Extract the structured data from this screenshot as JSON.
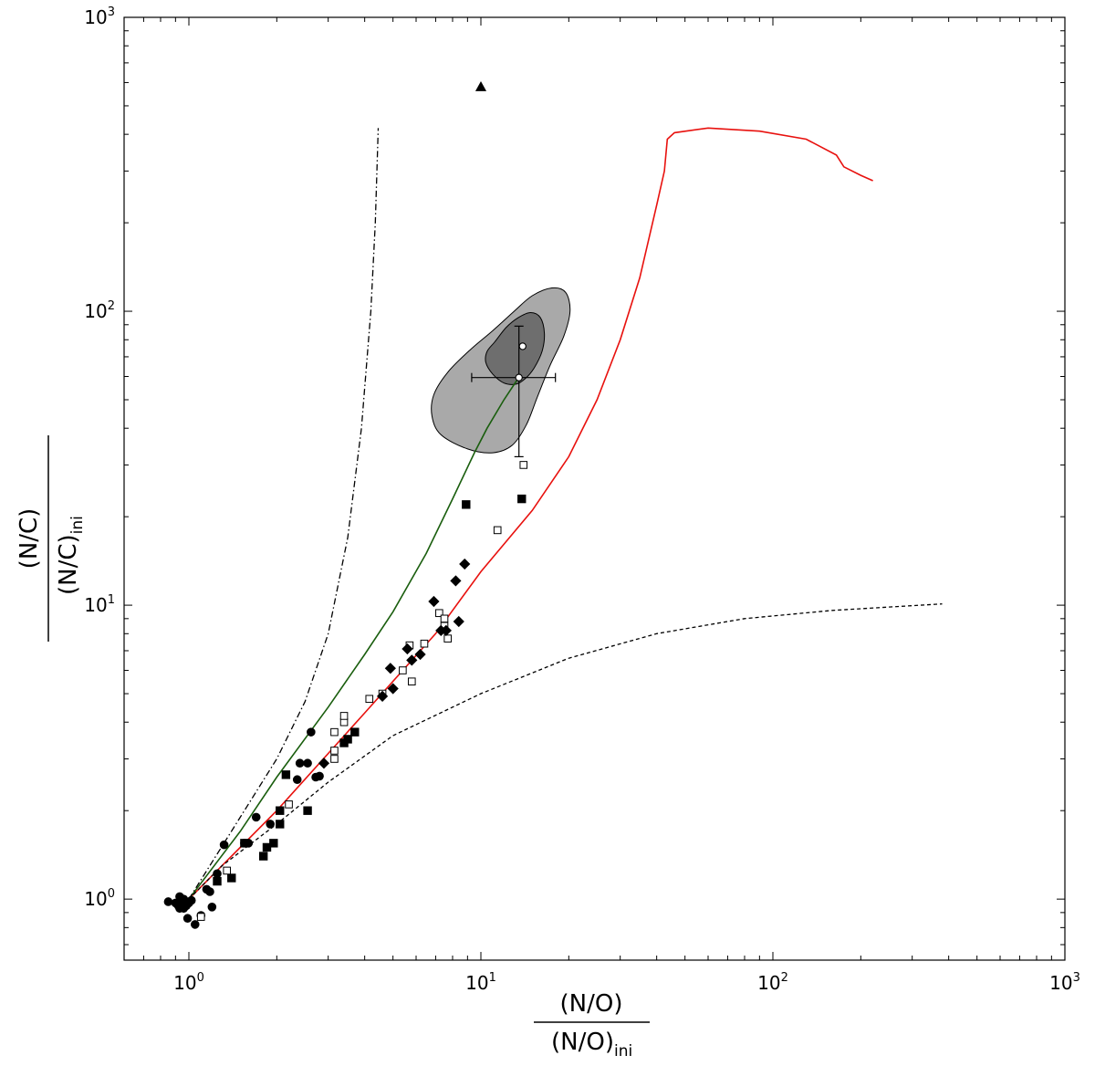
{
  "chart_data": {
    "type": "scatter",
    "scale": {
      "x": "log",
      "y": "log"
    },
    "xlim": [
      0.6,
      1000
    ],
    "ylim": [
      0.62,
      1000
    ],
    "x_ticks": [
      {
        "value": 1,
        "base": "10",
        "exp": "0"
      },
      {
        "value": 10,
        "base": "10",
        "exp": "1"
      },
      {
        "value": 100,
        "base": "10",
        "exp": "2"
      },
      {
        "value": 1000,
        "base": "10",
        "exp": "3"
      }
    ],
    "y_ticks": [
      {
        "value": 1,
        "base": "10",
        "exp": "0"
      },
      {
        "value": 10,
        "base": "10",
        "exp": "1"
      },
      {
        "value": 100,
        "base": "10",
        "exp": "2"
      },
      {
        "value": 1000,
        "base": "10",
        "exp": "3"
      }
    ],
    "xlabel": {
      "numerator": "(N/O)",
      "denominator": "(N/O)",
      "denominator_sub": "ini"
    },
    "ylabel": {
      "numerator": "(N/C)",
      "denominator": "(N/C)",
      "denominator_sub": "ini"
    },
    "series": [
      {
        "name": "filled circles",
        "marker": "circle",
        "filled": true,
        "points": [
          [
            0.85,
            0.98
          ],
          [
            0.9,
            0.97
          ],
          [
            0.92,
            0.95
          ],
          [
            0.93,
            1.02
          ],
          [
            0.94,
            0.99
          ],
          [
            0.96,
            0.93
          ],
          [
            0.98,
            0.95
          ],
          [
            1.0,
            0.97
          ],
          [
            1.02,
            0.99
          ],
          [
            0.99,
            0.86
          ],
          [
            1.05,
            0.82
          ],
          [
            1.1,
            0.88
          ],
          [
            1.15,
            1.08
          ],
          [
            1.2,
            0.94
          ],
          [
            1.18,
            1.06
          ],
          [
            1.25,
            1.22
          ],
          [
            1.32,
            1.53
          ],
          [
            1.55,
            1.55
          ],
          [
            1.6,
            1.55
          ],
          [
            1.7,
            1.9
          ],
          [
            1.9,
            1.8
          ],
          [
            2.35,
            2.55
          ],
          [
            2.4,
            2.9
          ],
          [
            2.55,
            2.9
          ],
          [
            2.62,
            3.7
          ],
          [
            2.72,
            2.6
          ],
          [
            2.8,
            2.62
          ],
          [
            0.93,
            0.93
          ],
          [
            0.96,
            1.0
          ]
        ]
      },
      {
        "name": "filled squares",
        "marker": "square",
        "filled": true,
        "points": [
          [
            1.25,
            1.15
          ],
          [
            1.4,
            1.18
          ],
          [
            1.55,
            1.55
          ],
          [
            1.8,
            1.4
          ],
          [
            1.85,
            1.5
          ],
          [
            1.95,
            1.55
          ],
          [
            2.05,
            1.8
          ],
          [
            2.05,
            2.0
          ],
          [
            2.15,
            2.65
          ],
          [
            2.55,
            2.0
          ],
          [
            3.4,
            3.4
          ],
          [
            3.5,
            3.5
          ],
          [
            3.7,
            3.7
          ],
          [
            8.9,
            22
          ],
          [
            13.8,
            23
          ]
        ]
      },
      {
        "name": "open squares",
        "marker": "square",
        "filled": false,
        "points": [
          [
            1.1,
            0.87
          ],
          [
            1.35,
            1.25
          ],
          [
            2.2,
            2.1
          ],
          [
            3.15,
            3.0
          ],
          [
            3.15,
            3.2
          ],
          [
            3.15,
            3.7
          ],
          [
            3.4,
            4.0
          ],
          [
            3.4,
            4.2
          ],
          [
            4.15,
            4.8
          ],
          [
            4.6,
            5.0
          ],
          [
            5.4,
            6.0
          ],
          [
            5.7,
            7.3
          ],
          [
            5.8,
            5.5
          ],
          [
            6.4,
            7.4
          ],
          [
            7.2,
            9.4
          ],
          [
            7.5,
            8.5
          ],
          [
            7.5,
            9.0
          ],
          [
            7.7,
            7.7
          ],
          [
            11.4,
            18
          ],
          [
            14,
            30
          ]
        ]
      },
      {
        "name": "filled diamonds",
        "marker": "diamond",
        "filled": true,
        "points": [
          [
            2.9,
            2.9
          ],
          [
            4.6,
            4.9
          ],
          [
            4.9,
            6.1
          ],
          [
            5.0,
            5.2
          ],
          [
            5.6,
            7.1
          ],
          [
            5.8,
            6.5
          ],
          [
            6.2,
            6.8
          ],
          [
            6.9,
            10.3
          ],
          [
            7.3,
            8.2
          ],
          [
            7.6,
            8.2
          ],
          [
            8.2,
            12.1
          ],
          [
            8.4,
            8.8
          ],
          [
            8.8,
            13.8
          ]
        ]
      },
      {
        "name": "filled triangle",
        "marker": "triangle",
        "filled": true,
        "points": [
          [
            10.0,
            580
          ]
        ]
      }
    ],
    "lines": [
      {
        "name": "red model track",
        "color": "#e8110e",
        "style": "solid",
        "points": [
          [
            1.0,
            1.0
          ],
          [
            2.0,
            2.0
          ],
          [
            4.0,
            4.3
          ],
          [
            7.0,
            8.0
          ],
          [
            10.0,
            13.0
          ],
          [
            15.0,
            21
          ],
          [
            20.0,
            32
          ],
          [
            25.0,
            50
          ],
          [
            30.0,
            80
          ],
          [
            35.0,
            130
          ],
          [
            40.0,
            230
          ],
          [
            42.5,
            300
          ],
          [
            43.5,
            385
          ],
          [
            46.0,
            405
          ],
          [
            60.0,
            420
          ],
          [
            90.0,
            410
          ],
          [
            130.0,
            385
          ],
          [
            165.0,
            340
          ],
          [
            175.0,
            310
          ],
          [
            200.0,
            290
          ],
          [
            220.0,
            278
          ]
        ]
      },
      {
        "name": "green model track",
        "color": "#1a5e0e",
        "style": "solid",
        "points": [
          [
            1.0,
            1.0
          ],
          [
            1.5,
            1.7
          ],
          [
            2.0,
            2.6
          ],
          [
            3.0,
            4.5
          ],
          [
            4.0,
            6.8
          ],
          [
            5.0,
            9.5
          ],
          [
            6.5,
            15
          ],
          [
            8.0,
            23
          ],
          [
            9.5,
            33
          ],
          [
            10.5,
            40
          ],
          [
            12.0,
            50
          ],
          [
            13.4,
            59
          ]
        ]
      },
      {
        "name": "dash-dot curve",
        "color": "#000000",
        "style": "dashdot",
        "points": [
          [
            1.0,
            1.0
          ],
          [
            1.5,
            1.9
          ],
          [
            2.0,
            3.0
          ],
          [
            2.5,
            4.7
          ],
          [
            3.0,
            8.0
          ],
          [
            3.5,
            17
          ],
          [
            3.9,
            40
          ],
          [
            4.2,
            100
          ],
          [
            4.35,
            200
          ],
          [
            4.45,
            420
          ]
        ]
      },
      {
        "name": "dashed curve",
        "color": "#000000",
        "style": "dashed",
        "points": [
          [
            1.0,
            1.0
          ],
          [
            1.3,
            1.3
          ],
          [
            2.0,
            1.8
          ],
          [
            3.0,
            2.5
          ],
          [
            5.0,
            3.6
          ],
          [
            10.0,
            5.0
          ],
          [
            20.0,
            6.6
          ],
          [
            40.0,
            8.0
          ],
          [
            80.0,
            9.0
          ],
          [
            160.0,
            9.6
          ],
          [
            380.0,
            10.1
          ]
        ]
      }
    ],
    "contours": [
      {
        "name": "outer confidence region",
        "points": [
          [
            9.2,
            74
          ],
          [
            11,
            86
          ],
          [
            13,
            100
          ],
          [
            15,
            113
          ],
          [
            17.5,
            120
          ],
          [
            19.5,
            116
          ],
          [
            20.2,
            100
          ],
          [
            19.2,
            82
          ],
          [
            17.2,
            65
          ],
          [
            15.6,
            51
          ],
          [
            14.3,
            41
          ],
          [
            12.8,
            35
          ],
          [
            11,
            33
          ],
          [
            9,
            34
          ],
          [
            7.3,
            38
          ],
          [
            6.8,
            44
          ],
          [
            6.9,
            52
          ],
          [
            7.7,
            62
          ]
        ]
      },
      {
        "name": "inner confidence region",
        "points": [
          [
            11.2,
            79
          ],
          [
            12.2,
            88
          ],
          [
            13.4,
            95
          ],
          [
            14.8,
            99
          ],
          [
            16.0,
            95
          ],
          [
            16.5,
            84
          ],
          [
            16.2,
            73
          ],
          [
            15.2,
            64
          ],
          [
            14.2,
            59
          ],
          [
            13.2,
            56.5
          ],
          [
            12.0,
            57
          ],
          [
            11.0,
            61
          ],
          [
            10.4,
            67
          ],
          [
            10.5,
            73
          ]
        ]
      }
    ],
    "measurements": [
      {
        "name": "open circle upper",
        "x": 13.9,
        "y": 76
      },
      {
        "name": "open circle with error bars",
        "x": 13.5,
        "y": 59.5,
        "x_err": [
          9.3,
          18.0
        ],
        "y_err": [
          32,
          89
        ]
      }
    ]
  }
}
